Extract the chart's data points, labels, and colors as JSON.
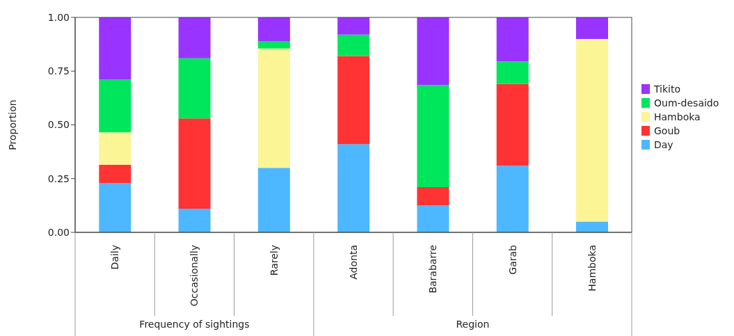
{
  "chart_data": {
    "type": "bar",
    "stacked": true,
    "ylabel": "Proportion",
    "categories": [
      "Daily",
      "Occasionally",
      "Rarely",
      "Adonta",
      "Barabarre",
      "Garab",
      "Hamboka"
    ],
    "series": [
      {
        "name": "Day",
        "color": "#4db8ff",
        "values": [
          0.23,
          0.11,
          0.3,
          0.41,
          0.125,
          0.31,
          0.05
        ]
      },
      {
        "name": "Goub",
        "color": "#ff3333",
        "values": [
          0.085,
          0.42,
          0,
          0.41,
          0.085,
          0.38,
          0
        ]
      },
      {
        "name": "Hamboka",
        "color": "#fcf596",
        "values": [
          0.15,
          0,
          0.555,
          0,
          0,
          0,
          0.85
        ]
      },
      {
        "name": "Oum-desaido",
        "color": "#00e65c",
        "values": [
          0.245,
          0.28,
          0.035,
          0.1,
          0.475,
          0.105,
          0
        ]
      },
      {
        "name": "Tikito",
        "color": "#9933ff",
        "values": [
          0.29,
          0.19,
          0.11,
          0.08,
          0.315,
          0.205,
          0.1
        ]
      }
    ],
    "ylim": [
      0,
      1
    ],
    "yticks": [
      {
        "value": 0,
        "label": "0.00"
      },
      {
        "value": 0.25,
        "label": "0.25"
      },
      {
        "value": 0.5,
        "label": "0.50"
      },
      {
        "value": 0.75,
        "label": "0.75"
      },
      {
        "value": 1,
        "label": "1.00"
      }
    ],
    "legend": "right",
    "annotations": [
      "Frequency of sightings",
      "Region"
    ]
  }
}
